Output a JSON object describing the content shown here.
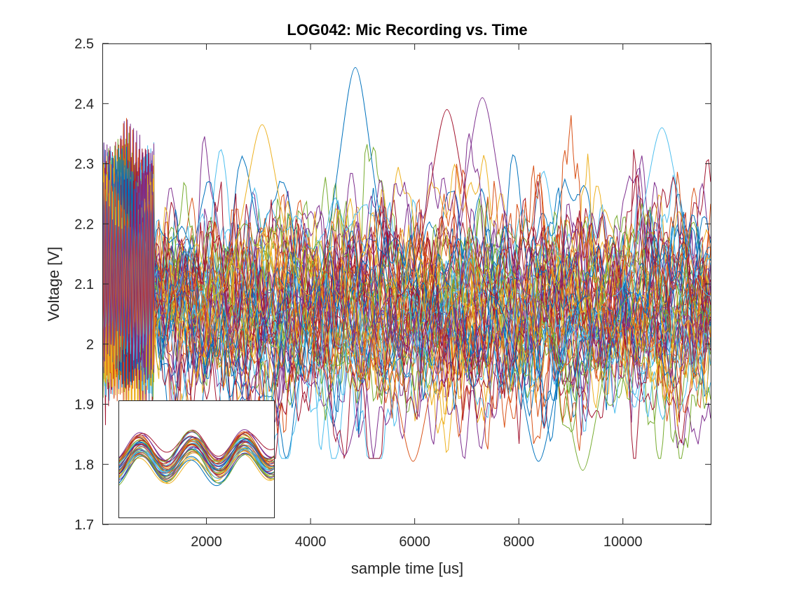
{
  "chart_data": {
    "type": "line",
    "title": "LOG042: Mic Recording vs. Time",
    "xlabel": "sample time [us]",
    "ylabel": "Voltage [V]",
    "xlim": [
      0,
      11700
    ],
    "ylim": [
      1.7,
      2.5
    ],
    "xticks": [
      2000,
      4000,
      6000,
      8000,
      10000
    ],
    "yticks": [
      1.7,
      1.8,
      1.9,
      2.0,
      2.1,
      2.2,
      2.3,
      2.4,
      2.5
    ],
    "xtick_labels": [
      "2000",
      "4000",
      "6000",
      "8000",
      "10000"
    ],
    "ytick_labels": [
      "1.7",
      "1.8",
      "1.9",
      "2",
      "2.1",
      "2.2",
      "2.3",
      "2.4",
      "2.5"
    ],
    "grid": false,
    "legend": "none",
    "series_count": 60,
    "colors": [
      "#0072BD",
      "#D95319",
      "#EDB120",
      "#7E2F8E",
      "#77AC30",
      "#4DBEEE",
      "#A2142F"
    ],
    "initial_burst": {
      "x_range": [
        0,
        1000
      ],
      "center": 2.12,
      "amplitude": 0.24,
      "oscillation_period_us": 60
    },
    "noise_region": {
      "x_range": [
        1000,
        11700
      ],
      "center": 2.08,
      "typical_spread": 0.11,
      "min_approx": 1.79,
      "max_approx": 2.46
    },
    "series_peaks": [
      {
        "x": 4860,
        "y": 2.46
      },
      {
        "x": 7300,
        "y": 2.41
      },
      {
        "x": 6620,
        "y": 2.39
      },
      {
        "x": 3070,
        "y": 2.365
      },
      {
        "x": 10750,
        "y": 2.36
      }
    ],
    "series_troughs": [
      {
        "x": 5970,
        "y": 1.805
      },
      {
        "x": 9230,
        "y": 1.79
      },
      {
        "x": 8380,
        "y": 1.805
      },
      {
        "x": 4650,
        "y": 1.815
      }
    ],
    "inset": {
      "description_visible": false,
      "lines": 40,
      "cycles": 3,
      "grid": false
    }
  }
}
